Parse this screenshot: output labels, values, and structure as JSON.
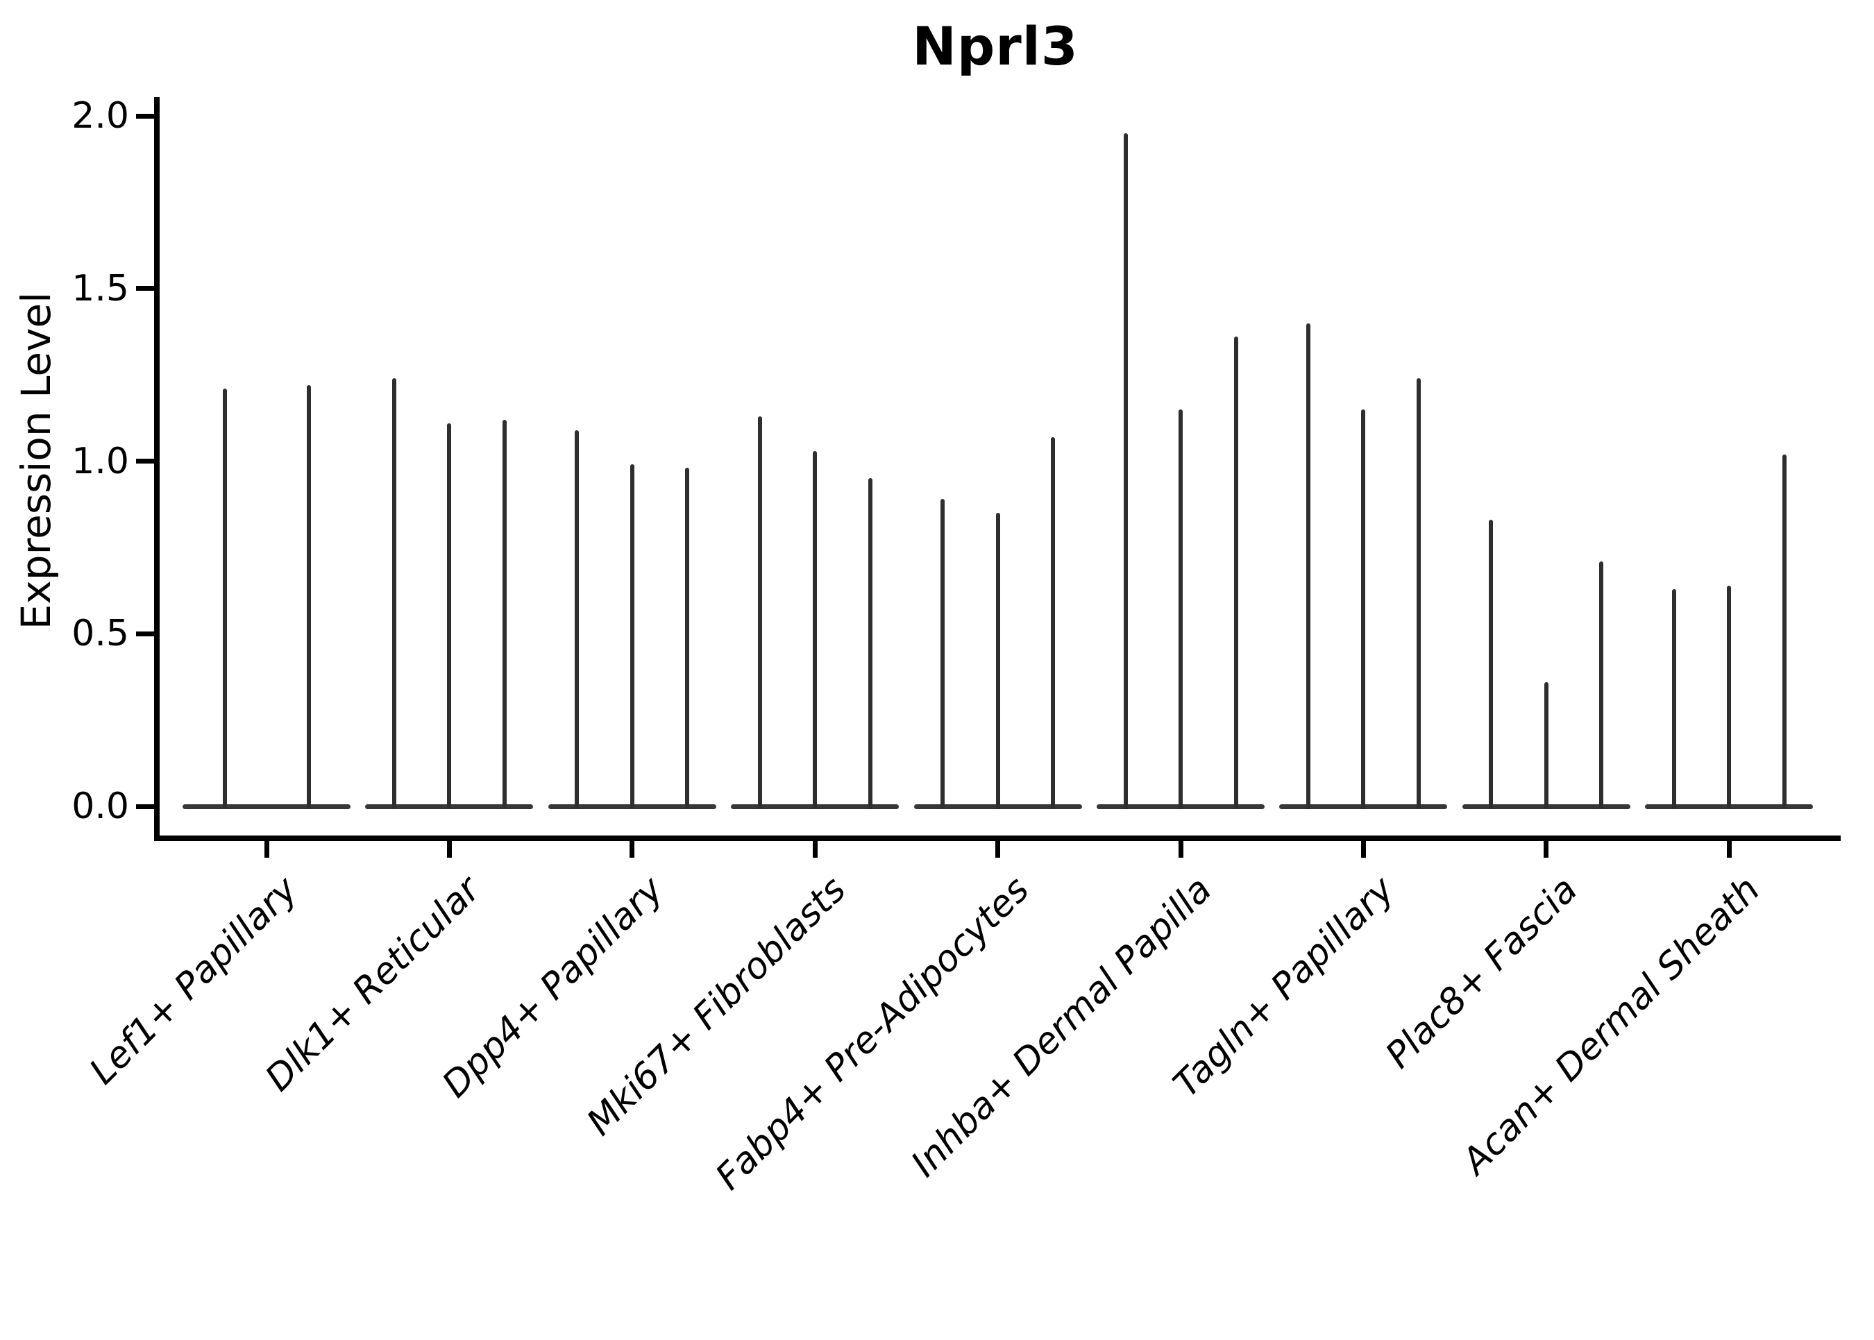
{
  "figure": {
    "title": "Nprl3",
    "ylabel": "Expression Level",
    "background_color": "#ffffff",
    "violin_color": "#2e2e2e",
    "axis_color": "#000000"
  },
  "chart_data": {
    "type": "violin",
    "title": "Nprl3",
    "xlabel": "",
    "ylabel": "Expression Level",
    "ylim": [
      -0.09,
      2.1
    ],
    "yticks": [
      0.0,
      0.5,
      1.0,
      1.5,
      2.0
    ],
    "ytick_labels": [
      "0.0",
      "0.5",
      "1.0",
      "1.5",
      "2.0"
    ],
    "grid": false,
    "legend_position": "none",
    "style_note": "very narrow spike-like violins, flat wide base at y=0, dark gray strokes, x labels rotated 45deg italic",
    "categories": [
      "Lef1+ Papillary",
      "Dlk1+ Reticular",
      "Dpp4+ Papillary",
      "Mki67+ Fibroblasts",
      "Fabp4+ Pre-Adipocytes",
      "Inhba+ Dermal Papilla",
      "Tagln+ Papillary",
      "Plac8+ Fascia",
      "Acan+ Dermal Sheath"
    ],
    "groups": [
      {
        "category": "Lef1+ Papillary",
        "violin_max_values": [
          1.21,
          1.22
        ]
      },
      {
        "category": "Dlk1+ Reticular",
        "violin_max_values": [
          1.24,
          1.11,
          1.12
        ]
      },
      {
        "category": "Dpp4+ Papillary",
        "violin_max_values": [
          1.09,
          0.99,
          0.98
        ]
      },
      {
        "category": "Mki67+ Fibroblasts",
        "violin_max_values": [
          1.13,
          1.03,
          0.95
        ]
      },
      {
        "category": "Fabp4+ Pre-Adipocytes",
        "violin_max_values": [
          0.89,
          0.85,
          1.07
        ]
      },
      {
        "category": "Inhba+ Dermal Papilla",
        "violin_max_values": [
          1.95,
          1.15,
          1.36
        ]
      },
      {
        "category": "Tagln+ Papillary",
        "violin_max_values": [
          1.4,
          1.15,
          1.24
        ]
      },
      {
        "category": "Plac8+ Fascia",
        "violin_max_values": [
          0.83,
          0.36,
          0.71
        ]
      },
      {
        "category": "Acan+ Dermal Sheath",
        "violin_max_values": [
          0.63,
          0.64,
          1.02
        ]
      }
    ]
  }
}
